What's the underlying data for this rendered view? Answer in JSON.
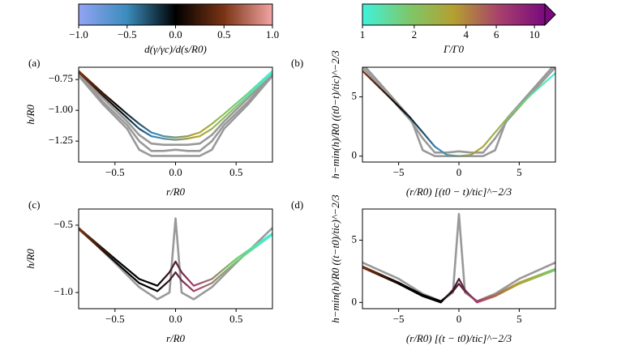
{
  "chart_data": [
    {
      "type": "colorbar",
      "label": "d(γ/γc)/d(s/R0)",
      "xlim": [
        -1,
        1
      ],
      "xticks": [
        {
          "value": -1,
          "label": "−1.0"
        },
        {
          "value": -0.5,
          "label": "−0.5"
        },
        {
          "value": 0,
          "label": "0.0"
        },
        {
          "value": 0.5,
          "label": "0.5"
        },
        {
          "value": 1,
          "label": "1.0"
        }
      ],
      "colors": [
        "#92a4f4",
        "#3a8cbc",
        "#000000",
        "#7a3414",
        "#f2a4a4"
      ]
    },
    {
      "type": "colorbar",
      "label": "Γ/Γ0",
      "xlim": [
        1,
        11.5
      ],
      "log": true,
      "extend": "max",
      "xticks": [
        1,
        2,
        4,
        6,
        10
      ],
      "colors": [
        "#40f2dc",
        "#7cc86c",
        "#b4a030",
        "#a8406c",
        "#7a0a7e"
      ]
    },
    {
      "type": "line",
      "panel": "(a)",
      "xlabel": "r/R0",
      "ylabel": "h/R0",
      "xlim": [
        -0.8,
        0.8
      ],
      "ylim": [
        -1.42,
        -0.65
      ],
      "xticks": [
        {
          "value": -0.5,
          "label": "−0.5"
        },
        {
          "value": 0,
          "label": "0.0"
        },
        {
          "value": 0.5,
          "label": "0.5"
        }
      ],
      "yticks": [
        {
          "value": -1.25,
          "label": "−1.25"
        },
        {
          "value": -1,
          "label": "−1.00"
        },
        {
          "value": -0.75,
          "label": "−0.75"
        }
      ],
      "x": [
        -0.8,
        -0.6,
        -0.4,
        -0.3,
        -0.2,
        -0.1,
        0,
        0.1,
        0.2,
        0.3,
        0.4,
        0.6,
        0.8
      ],
      "series": [
        {
          "color": "#999999",
          "values": [
            -0.72,
            -0.95,
            -1.15,
            -1.32,
            -1.37,
            -1.37,
            -1.37,
            -1.37,
            -1.37,
            -1.32,
            -1.15,
            -0.95,
            -0.72
          ]
        },
        {
          "color": "#999999",
          "values": [
            -0.71,
            -0.93,
            -1.12,
            -1.25,
            -1.33,
            -1.33,
            -1.32,
            -1.33,
            -1.33,
            -1.25,
            -1.12,
            -0.93,
            -0.71
          ]
        },
        {
          "color": "#999999",
          "values": [
            -0.7,
            -0.9,
            -1.09,
            -1.2,
            -1.27,
            -1.28,
            -1.28,
            -1.28,
            -1.27,
            -1.2,
            -1.09,
            -0.9,
            -0.7
          ]
        },
        {
          "colors": [
            "#7a3414",
            "#000000",
            "#3a8cbc",
            "#b4a030",
            "#7cc86c",
            "#40f2dc"
          ],
          "values": [
            -0.69,
            -0.88,
            -1.06,
            -1.15,
            -1.21,
            -1.23,
            -1.24,
            -1.23,
            -1.21,
            -1.15,
            -1.06,
            -0.88,
            -0.69
          ]
        },
        {
          "colors": [
            "#7a3414",
            "#000000",
            "#3a8cbc",
            "#b4a030",
            "#7cc86c",
            "#40f2dc"
          ],
          "values": [
            -0.68,
            -0.86,
            -1.03,
            -1.11,
            -1.18,
            -1.21,
            -1.22,
            -1.21,
            -1.18,
            -1.11,
            -1.03,
            -0.86,
            -0.68
          ]
        }
      ]
    },
    {
      "type": "line",
      "panel": "(b)",
      "xlabel": "(r/R0) [(t0 − t)/tic]^−2/3",
      "ylabel": "h−min(h)/R0 ((t0−t)/tic)^−2/3",
      "xlim": [
        -8,
        8
      ],
      "ylim": [
        -0.5,
        7.5
      ],
      "xticks": [
        {
          "value": -5,
          "label": "−5"
        },
        0,
        5
      ],
      "yticks": [
        0,
        5
      ],
      "x": [
        -8,
        -6,
        -4,
        -3,
        -2,
        -1,
        0,
        1,
        2,
        3,
        4,
        6,
        8
      ],
      "series": [
        {
          "color": "#999999",
          "values": [
            7.8,
            5.5,
            3.2,
            0.5,
            0,
            0,
            0,
            0,
            0,
            0.5,
            3.2,
            5.5,
            7.8
          ]
        },
        {
          "color": "#999999",
          "values": [
            7.5,
            5.3,
            3,
            1.5,
            0.3,
            0.3,
            0.4,
            0.3,
            0.3,
            1.5,
            3,
            5.3,
            7.5
          ]
        },
        {
          "colors": [
            "#7a3414",
            "#000000",
            "#3a8cbc",
            "#b4a030",
            "#7cc86c",
            "#40f2dc"
          ],
          "values": [
            7.2,
            5.2,
            3.2,
            2,
            0.8,
            0.1,
            0,
            0.1,
            0.8,
            2,
            3.2,
            5.2,
            7
          ]
        }
      ]
    },
    {
      "type": "line",
      "panel": "(c)",
      "xlabel": "r/R0",
      "ylabel": "h/R0",
      "xlim": [
        -0.8,
        0.8
      ],
      "ylim": [
        -1.12,
        -0.38
      ],
      "xticks": [
        {
          "value": -0.5,
          "label": "−0.5"
        },
        {
          "value": 0,
          "label": "0.0"
        },
        {
          "value": 0.5,
          "label": "0.5"
        }
      ],
      "yticks": [
        {
          "value": -1,
          "label": "−1.0"
        },
        {
          "value": -0.5,
          "label": "−0.5"
        }
      ],
      "x": [
        -0.8,
        -0.5,
        -0.3,
        -0.15,
        -0.05,
        0,
        0.05,
        0.15,
        0.3,
        0.5,
        0.8
      ],
      "series": [
        {
          "color": "#999999",
          "values": [
            -0.52,
            -0.78,
            -0.96,
            -1.05,
            -1,
            -0.45,
            -1,
            -1.05,
            -0.96,
            -0.78,
            -0.52
          ]
        },
        {
          "colors": [
            "#7a3414",
            "#000000",
            "#000000",
            "#a8406c",
            "#7cc86c",
            "#40f2dc"
          ],
          "values": [
            -0.53,
            -0.77,
            -0.93,
            -0.99,
            -0.91,
            -0.85,
            -0.91,
            -0.99,
            -0.93,
            -0.77,
            -0.57
          ]
        },
        {
          "colors": [
            "#7a3414",
            "#000000",
            "#000000",
            "#a8406c",
            "#7cc86c",
            "#40f2dc"
          ],
          "values": [
            -0.52,
            -0.75,
            -0.9,
            -0.95,
            -0.85,
            -0.77,
            -0.85,
            -0.95,
            -0.9,
            -0.75,
            -0.56
          ]
        }
      ]
    },
    {
      "type": "line",
      "panel": "(d)",
      "xlabel": "(r/R0) [(t − t0)/tic]^−2/3",
      "ylabel": "h−min(h)/R0 ((t−t0)/tic)^−2/3",
      "xlim": [
        -8,
        8
      ],
      "ylim": [
        -0.5,
        7.5
      ],
      "xticks": [
        {
          "value": -5,
          "label": "−5"
        },
        0,
        5
      ],
      "yticks": [
        0,
        5
      ],
      "x": [
        -8,
        -5,
        -3,
        -1.5,
        -0.5,
        0,
        0.5,
        1.5,
        3,
        5,
        8
      ],
      "series": [
        {
          "color": "#999999",
          "values": [
            3.2,
            1.9,
            0.7,
            0.1,
            0.8,
            7.1,
            0.8,
            0.1,
            0.7,
            1.9,
            3.2
          ]
        },
        {
          "colors": [
            "#7a3414",
            "#000000",
            "#000000",
            "#a8406c",
            "#b4a030",
            "#7cc86c"
          ],
          "values": [
            2.9,
            1.6,
            0.6,
            0.1,
            0.9,
            1.5,
            0.9,
            0.1,
            0.6,
            1.6,
            2.7
          ]
        },
        {
          "colors": [
            "#7a3414",
            "#000000",
            "#000000",
            "#a8406c",
            "#b4a030",
            "#7cc86c"
          ],
          "values": [
            2.8,
            1.5,
            0.5,
            0,
            1,
            1.9,
            1,
            0,
            0.5,
            1.5,
            2.6
          ]
        }
      ]
    }
  ]
}
